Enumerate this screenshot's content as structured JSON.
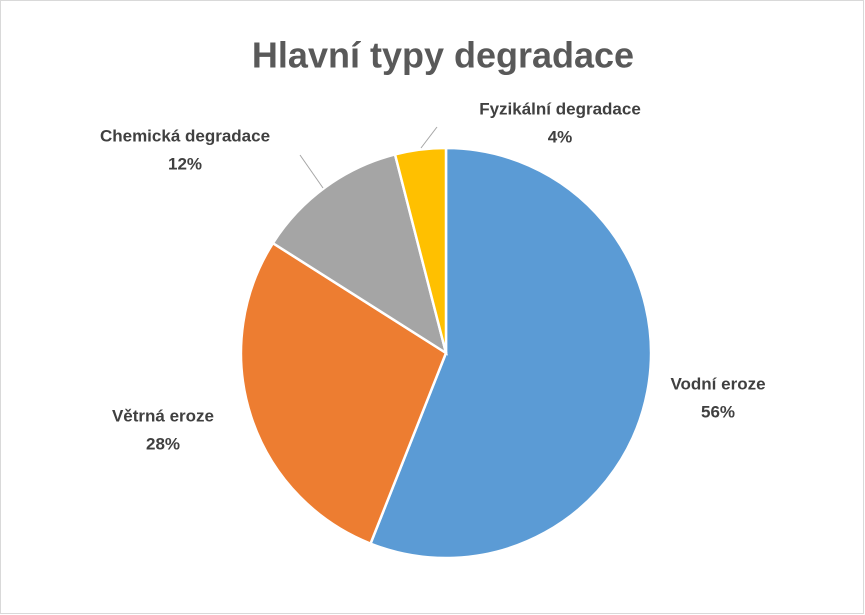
{
  "chart_data": {
    "type": "pie",
    "title": "Hlavní typy degradace",
    "categories": [
      "Vodní eroze",
      "Větrná eroze",
      "Chemická degradace",
      "Fyzikální degradace"
    ],
    "values": [
      56,
      28,
      12,
      4
    ],
    "value_labels": [
      "56%",
      "28%",
      "12%",
      "4%"
    ],
    "colors": [
      "#5b9bd5",
      "#ed7d31",
      "#a5a5a5",
      "#ffc000"
    ]
  }
}
